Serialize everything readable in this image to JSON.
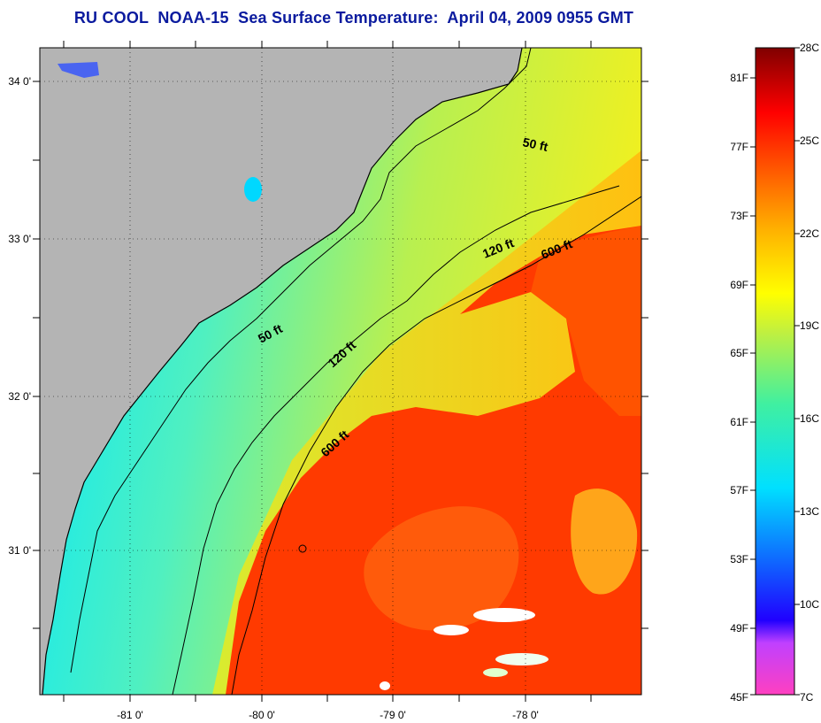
{
  "title": "RU COOL  NOAA-15  Sea Surface Temperature:  April 04, 2009 0955 GMT",
  "map": {
    "lon_labels": [
      "-81 0'",
      "-80 0'",
      "-79 0'",
      "-78 0'"
    ],
    "lat_labels": [
      "34 0'",
      "33 0'",
      "32 0'",
      "31 0'"
    ],
    "contour_labels": [
      {
        "id": "contour-50ft-north",
        "text": "50 ft"
      },
      {
        "id": "contour-50ft-south",
        "text": "50 ft"
      },
      {
        "id": "contour-120ft-north",
        "text": "120 ft"
      },
      {
        "id": "contour-120ft-south",
        "text": "120 ft"
      },
      {
        "id": "contour-600ft-north",
        "text": "600 ft"
      },
      {
        "id": "contour-600ft-south",
        "text": "600 ft"
      }
    ],
    "colors": {
      "land": "#b4b4b4",
      "cold": "#00e5ff",
      "cool": "#9cf06a",
      "warm": "#ffb000",
      "hot": "#ff2a00",
      "cloud": "#ffffff"
    }
  },
  "colorbar": {
    "fahrenheit_labels": [
      "81F",
      "77F",
      "73F",
      "69F",
      "65F",
      "61F",
      "57F",
      "53F",
      "49F",
      "45F"
    ],
    "celsius_labels": [
      "28C",
      "25C",
      "22C",
      "19C",
      "16C",
      "13C",
      "10C",
      "7C"
    ]
  }
}
